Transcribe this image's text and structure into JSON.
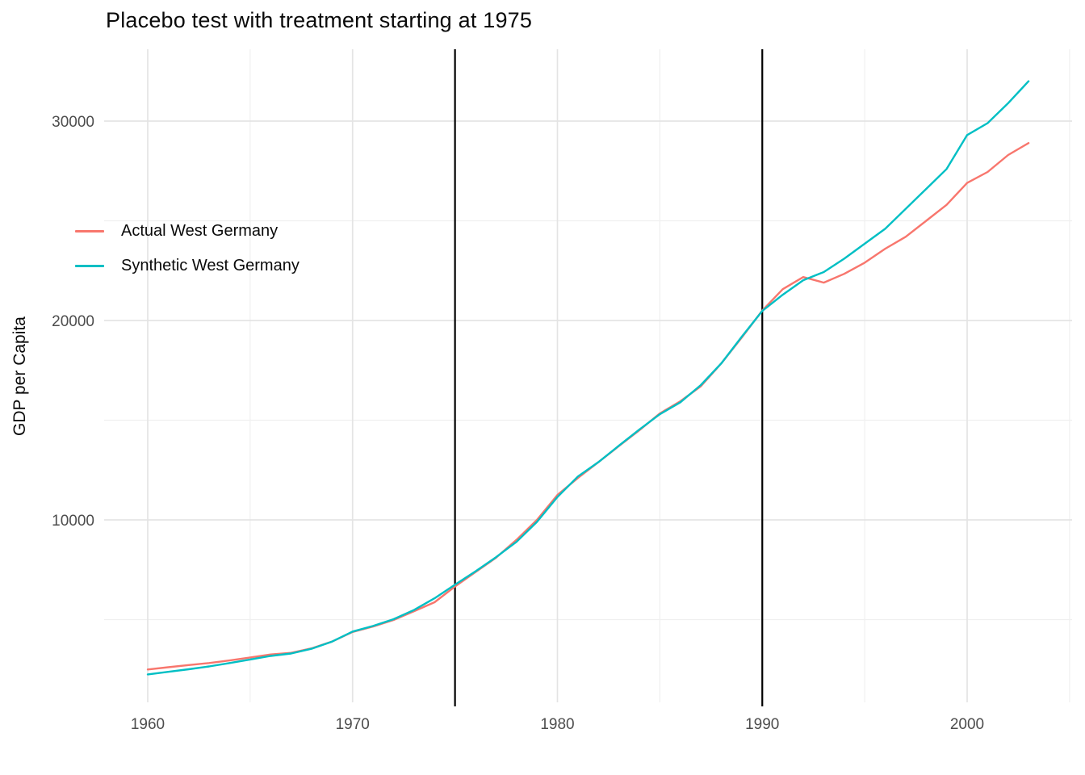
{
  "title": "Placebo test with treatment starting at 1975",
  "colors": {
    "actual_line": "#F8766D",
    "synthetic_line": "#00BFC4",
    "vline": "#000000",
    "grid_major": "#E4E4E4",
    "grid_minor": "#F0F0F0",
    "tick_label": "#4d4d4d",
    "text": "#0a0a0a"
  },
  "chart_data": {
    "type": "line",
    "title": "Placebo test with treatment starting at 1975",
    "xlabel": "",
    "ylabel": "GDP per Capita",
    "x": [
      1960,
      1961,
      1962,
      1963,
      1964,
      1965,
      1966,
      1967,
      1968,
      1969,
      1970,
      1971,
      1972,
      1973,
      1974,
      1975,
      1976,
      1977,
      1978,
      1979,
      1980,
      1981,
      1982,
      1983,
      1984,
      1985,
      1986,
      1987,
      1988,
      1989,
      1990,
      1991,
      1992,
      1993,
      1994,
      1995,
      1996,
      1997,
      1998,
      1999,
      2000,
      2001,
      2002,
      2003
    ],
    "series": [
      {
        "name": "Actual West Germany",
        "color": "#F8766D",
        "values": [
          2500,
          2610,
          2720,
          2820,
          2950,
          3100,
          3250,
          3330,
          3560,
          3900,
          4380,
          4650,
          4980,
          5420,
          5870,
          6660,
          7380,
          8100,
          9000,
          10000,
          11250,
          12100,
          12900,
          13700,
          14500,
          15340,
          15950,
          16700,
          17850,
          19150,
          20500,
          21570,
          22180,
          21900,
          22340,
          22900,
          23600,
          24200,
          25000,
          25800,
          26900,
          27450,
          28300,
          28900
        ]
      },
      {
        "name": "Synthetic West Germany",
        "color": "#00BFC4",
        "values": [
          2250,
          2380,
          2510,
          2650,
          2820,
          3000,
          3180,
          3300,
          3540,
          3900,
          4400,
          4680,
          5020,
          5480,
          6070,
          6750,
          7420,
          8130,
          8900,
          9900,
          11150,
          12180,
          12900,
          13720,
          14530,
          15300,
          15900,
          16760,
          17850,
          19190,
          20480,
          21290,
          22020,
          22430,
          23100,
          23850,
          24600,
          25600,
          26600,
          27600,
          29300,
          29900,
          30900,
          32000
        ]
      }
    ],
    "vlines": [
      1975,
      1990
    ],
    "x_ticks": [
      1960,
      1970,
      1980,
      1990,
      2000
    ],
    "x_minor_ticks": [
      1965,
      1975,
      1985,
      1995,
      2005
    ],
    "y_ticks": [
      10000,
      20000,
      30000
    ],
    "y_minor_ticks": [
      5000,
      15000,
      25000
    ],
    "x_range": [
      1957.85,
      2005.15
    ],
    "y_range": [
      755,
      33490
    ],
    "grid": "major+minor",
    "legend_position": "inside top-left"
  },
  "legend": {
    "items": [
      {
        "label": "Actual West Germany",
        "color": "#F8766D"
      },
      {
        "label": "Synthetic West Germany",
        "color": "#00BFC4"
      }
    ]
  },
  "axes": {
    "x_tick_labels": [
      "1960",
      "1970",
      "1980",
      "1990",
      "2000"
    ],
    "y_tick_labels": [
      "10000",
      "20000",
      "30000"
    ]
  }
}
